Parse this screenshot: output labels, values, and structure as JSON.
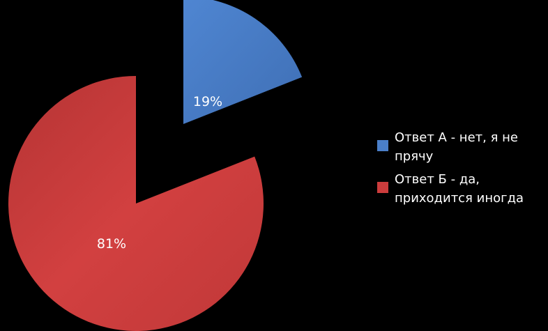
{
  "chart_data": {
    "type": "pie",
    "title": "",
    "slices": [
      {
        "label": "Ответ А - нет, я не прячу",
        "value": 19,
        "display": "19%",
        "color": "#4a7fc9",
        "exploded": true
      },
      {
        "label": "Ответ Б - да, приходится иногда",
        "value": 81,
        "display": "81%",
        "color": "#cc3c3c",
        "exploded": false
      }
    ],
    "legend_position": "right"
  }
}
